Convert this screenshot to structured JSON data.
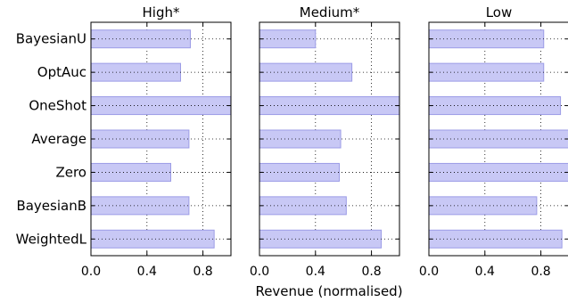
{
  "chart_data": {
    "type": "bar",
    "orientation": "horizontal",
    "categories": [
      "BayesianU",
      "OptAuc",
      "OneShot",
      "Average",
      "Zero",
      "BayesianB",
      "WeightedL"
    ],
    "xlabel": "Revenue (normalised)",
    "xlim": [
      0,
      1
    ],
    "xticks": [
      0.0,
      0.4,
      0.8
    ],
    "xtick_labels": [
      "0.0",
      "0.4",
      "0.8"
    ],
    "grid": "dotted vertical and horizontal",
    "bar_color": "#c8c8f5",
    "bar_edge_color": "#9c9ce6",
    "panels": [
      {
        "title": "High*",
        "values": [
          0.71,
          0.64,
          1.0,
          0.7,
          0.57,
          0.7,
          0.88
        ]
      },
      {
        "title": "Medium*",
        "values": [
          0.4,
          0.66,
          1.0,
          0.58,
          0.57,
          0.62,
          0.87
        ]
      },
      {
        "title": "Low",
        "values": [
          0.82,
          0.82,
          0.94,
          1.0,
          1.0,
          0.77,
          0.95
        ]
      }
    ]
  }
}
